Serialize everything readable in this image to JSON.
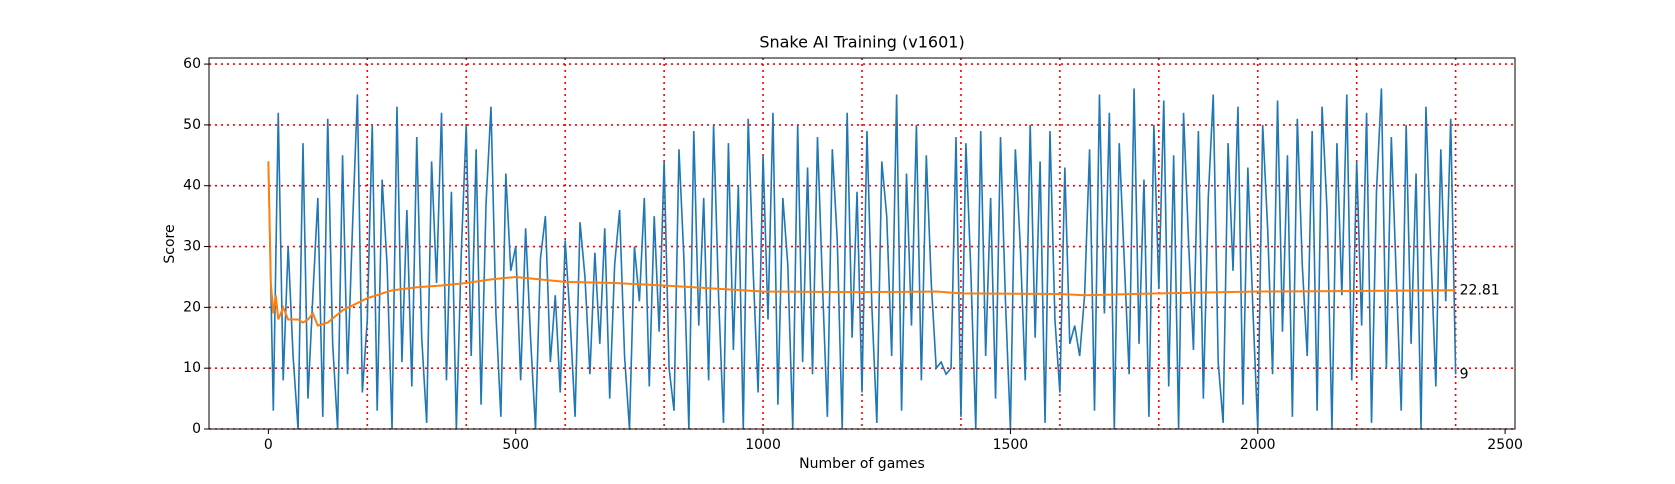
{
  "chart_data": {
    "type": "line",
    "title": "Snake AI Training (v1601)",
    "xlabel": "Number of games",
    "ylabel": "Score",
    "xlim": [
      -120,
      2520
    ],
    "ylim": [
      0,
      61
    ],
    "xticks": [
      0,
      500,
      1000,
      1500,
      2000,
      2500
    ],
    "yticks": [
      0,
      10,
      20,
      30,
      40,
      50,
      60
    ],
    "grid": true,
    "grid_color": "#ff0000",
    "xgrid": [
      200,
      400,
      600,
      800,
      1000,
      1200,
      1400,
      1600,
      1800,
      2000,
      2200,
      2400
    ],
    "series": [
      {
        "color": "#1f77b4",
        "x": [
          0,
          10,
          20,
          30,
          40,
          50,
          60,
          70,
          80,
          90,
          100,
          110,
          120,
          130,
          140,
          150,
          160,
          170,
          180,
          190,
          200,
          210,
          220,
          230,
          240,
          250,
          260,
          270,
          280,
          290,
          300,
          310,
          320,
          330,
          340,
          350,
          360,
          370,
          380,
          390,
          400,
          410,
          420,
          430,
          440,
          450,
          460,
          470,
          480,
          490,
          500,
          510,
          520,
          530,
          540,
          550,
          560,
          570,
          580,
          590,
          600,
          610,
          620,
          630,
          640,
          650,
          660,
          670,
          680,
          690,
          700,
          710,
          720,
          730,
          740,
          750,
          760,
          770,
          780,
          790,
          800,
          810,
          820,
          830,
          840,
          850,
          860,
          870,
          880,
          890,
          900,
          910,
          920,
          930,
          940,
          950,
          960,
          970,
          980,
          990,
          1000,
          1010,
          1020,
          1030,
          1040,
          1050,
          1060,
          1070,
          1080,
          1090,
          1100,
          1110,
          1120,
          1130,
          1140,
          1150,
          1160,
          1170,
          1180,
          1190,
          1200,
          1210,
          1220,
          1230,
          1240,
          1250,
          1260,
          1270,
          1280,
          1290,
          1300,
          1310,
          1320,
          1330,
          1340,
          1350,
          1360,
          1370,
          1380,
          1390,
          1400,
          1410,
          1420,
          1430,
          1440,
          1450,
          1460,
          1470,
          1480,
          1490,
          1500,
          1510,
          1520,
          1530,
          1540,
          1550,
          1560,
          1570,
          1580,
          1590,
          1600,
          1610,
          1620,
          1630,
          1640,
          1650,
          1660,
          1670,
          1680,
          1690,
          1700,
          1710,
          1720,
          1730,
          1740,
          1750,
          1760,
          1770,
          1780,
          1790,
          1800,
          1810,
          1820,
          1830,
          1840,
          1850,
          1860,
          1870,
          1880,
          1890,
          1900,
          1910,
          1920,
          1930,
          1940,
          1950,
          1960,
          1970,
          1980,
          1990,
          2000,
          2010,
          2020,
          2030,
          2040,
          2050,
          2060,
          2070,
          2080,
          2090,
          2100,
          2110,
          2120,
          2130,
          2140,
          2150,
          2160,
          2170,
          2180,
          2190,
          2200,
          2210,
          2220,
          2230,
          2240,
          2250,
          2260,
          2270,
          2280,
          2290,
          2300,
          2310,
          2320,
          2330,
          2340,
          2350,
          2360,
          2370,
          2380,
          2390,
          2400
        ],
        "values": [
          44,
          3,
          52,
          8,
          30,
          12,
          0,
          47,
          5,
          22,
          38,
          2,
          51,
          14,
          0,
          45,
          9,
          33,
          55,
          6,
          18,
          50,
          3,
          41,
          27,
          0,
          53,
          11,
          36,
          7,
          48,
          15,
          1,
          44,
          24,
          52,
          8,
          39,
          0,
          29,
          50,
          12,
          46,
          4,
          37,
          53,
          19,
          2,
          42,
          26,
          30,
          8,
          33,
          15,
          0,
          28,
          35,
          11,
          22,
          6,
          31,
          18,
          2,
          34,
          25,
          9,
          29,
          14,
          33,
          5,
          27,
          36,
          12,
          0,
          30,
          21,
          38,
          7,
          35,
          16,
          44,
          10,
          3,
          46,
          28,
          0,
          49,
          17,
          38,
          8,
          50,
          22,
          1,
          47,
          13,
          40,
          0,
          51,
          26,
          6,
          45,
          18,
          52,
          4,
          38,
          27,
          0,
          50,
          11,
          43,
          9,
          48,
          24,
          2,
          46,
          31,
          0,
          52,
          15,
          39,
          6,
          49,
          20,
          1,
          44,
          35,
          12,
          55,
          3,
          42,
          17,
          50,
          8,
          45,
          24,
          10,
          11,
          9,
          10,
          48,
          2,
          47,
          26,
          0,
          49,
          12,
          38,
          5,
          48,
          21,
          0,
          46,
          30,
          8,
          50,
          15,
          44,
          1,
          49,
          18,
          6,
          43,
          14,
          17,
          12,
          22,
          46,
          3,
          55,
          19,
          52,
          0,
          47,
          28,
          9,
          56,
          14,
          41,
          2,
          50,
          23,
          54,
          7,
          45,
          0,
          52,
          31,
          13,
          49,
          5,
          38,
          55,
          11,
          1,
          47,
          26,
          53,
          4,
          43,
          20,
          0,
          50,
          33,
          9,
          54,
          16,
          45,
          2,
          51,
          27,
          12,
          49,
          3,
          53,
          36,
          0,
          47,
          22,
          55,
          8,
          44,
          17,
          52,
          1,
          39,
          56,
          10,
          48,
          25,
          3,
          50,
          14,
          42,
          0,
          53,
          29,
          7,
          46,
          21,
          51,
          9
        ]
      },
      {
        "color": "#ff7f0e",
        "x": [
          0,
          5,
          10,
          15,
          20,
          30,
          40,
          50,
          60,
          70,
          80,
          90,
          100,
          120,
          150,
          200,
          250,
          300,
          350,
          400,
          450,
          500,
          600,
          700,
          800,
          900,
          1000,
          1200,
          1350,
          1400,
          1600,
          1650,
          1800,
          2000,
          2200,
          2400
        ],
        "values": [
          44,
          24,
          19,
          22,
          18,
          20,
          18,
          18,
          18,
          17.5,
          18,
          19,
          17,
          17.5,
          19.5,
          21.5,
          22.8,
          23.3,
          23.6,
          24,
          24.6,
          25,
          24.2,
          24,
          23.6,
          23.1,
          22.6,
          22.5,
          22.6,
          22.3,
          22.2,
          22,
          22.3,
          22.6,
          22.7,
          22.81
        ]
      }
    ]
  }
}
